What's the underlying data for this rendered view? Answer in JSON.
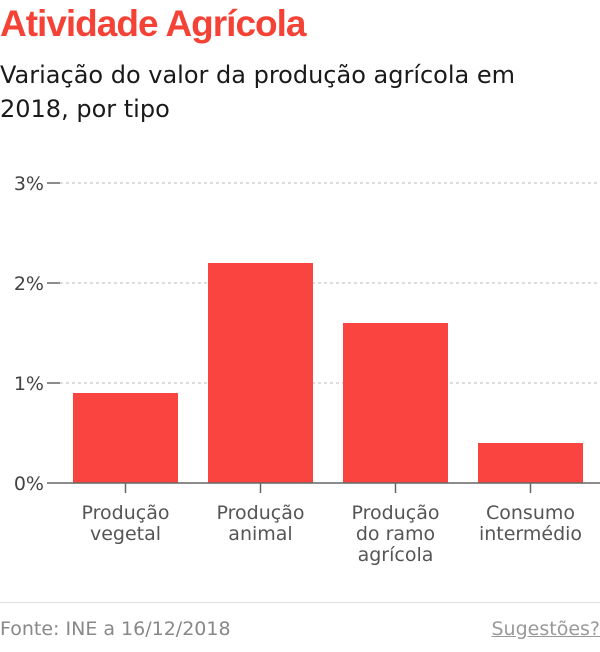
{
  "header": {
    "title": "Atividade Agrícola",
    "subtitle": "Variação do valor da produção agrícola em 2018, por tipo"
  },
  "colors": {
    "accent": "#f44336",
    "bar": "#f94440",
    "grid": "#bbbbbb",
    "axis": "#666666"
  },
  "chart_data": {
    "type": "bar",
    "categories": [
      [
        "Produção",
        "vegetal"
      ],
      [
        "Produção",
        "animal"
      ],
      [
        "Produção",
        "do ramo",
        "agrícola"
      ],
      [
        "Consumo",
        "intermédio"
      ]
    ],
    "values": [
      0.9,
      2.2,
      1.6,
      0.4
    ],
    "unit": "%",
    "ylim": [
      0,
      3
    ],
    "yticks": [
      0,
      1,
      2,
      3
    ],
    "ytick_labels": [
      "0%",
      "1%",
      "2%",
      "3%"
    ],
    "grid": true
  },
  "footer": {
    "source": "Fonte: INE a 16/12/2018",
    "suggestions_link": "Sugestões?"
  }
}
